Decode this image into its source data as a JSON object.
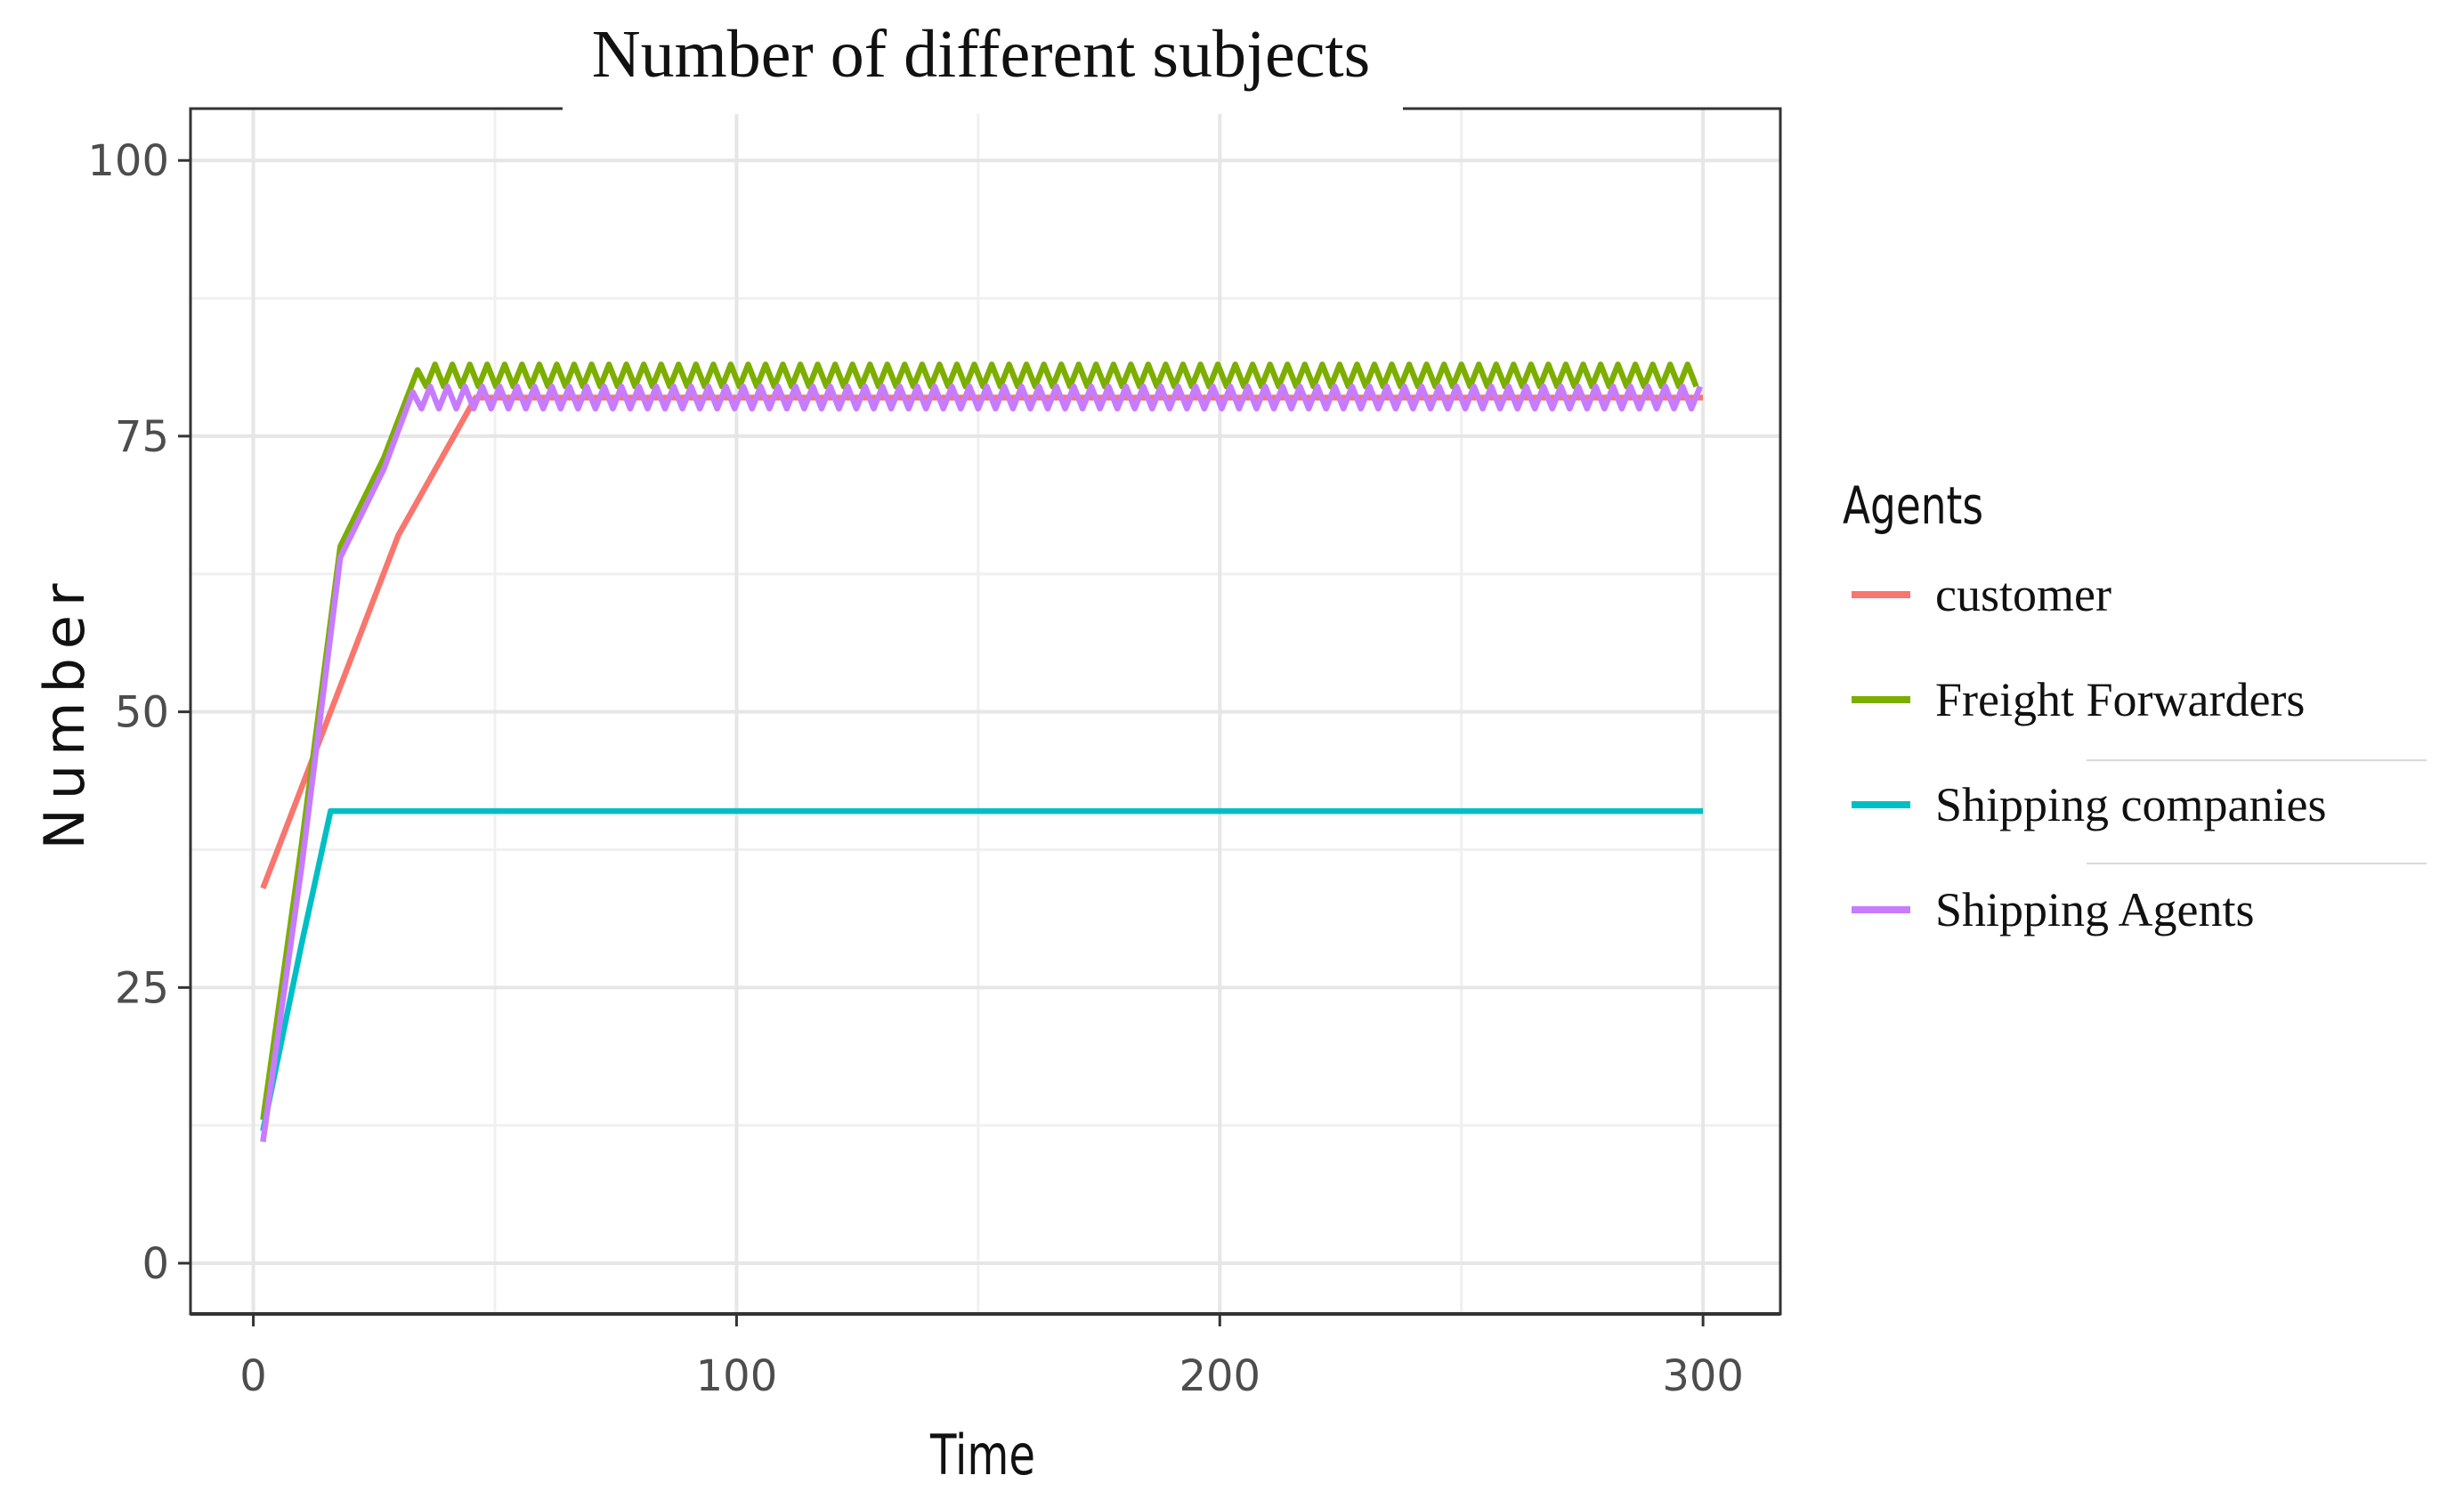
{
  "chart_data": {
    "type": "line",
    "title": "Number of different subjects",
    "xlabel": "Time",
    "ylabel": "Number",
    "xlim": [
      -13,
      316
    ],
    "ylim": [
      -4.6,
      104.7
    ],
    "x_ticks": [
      0,
      100,
      200,
      300
    ],
    "x_minor_ticks": [
      50,
      150,
      250
    ],
    "y_ticks": [
      0,
      25,
      50,
      75,
      100
    ],
    "y_minor_ticks": [
      12.5,
      37.5,
      62.5,
      87.5
    ],
    "grid": true,
    "legend": {
      "title": "Agents",
      "position": "right"
    },
    "series": [
      {
        "name": "customer",
        "color": "#F8766D",
        "points": [
          [
            2,
            34
          ],
          [
            16,
            50
          ],
          [
            30,
            66
          ],
          [
            46,
            78.5
          ],
          [
            300,
            78.5
          ]
        ]
      },
      {
        "name": "Freight Forwarders",
        "color": "#7CAE00",
        "points": [
          [
            2,
            13
          ],
          [
            10,
            38
          ],
          [
            18,
            65
          ],
          [
            27,
            73
          ],
          [
            34,
            81
          ]
        ],
        "oscillation": {
          "from": 34,
          "to": 300,
          "low": 79.5,
          "high": 81.5,
          "period": 3.6
        }
      },
      {
        "name": "Shipping companies",
        "color": "#00BFC4",
        "points": [
          [
            2,
            12
          ],
          [
            10,
            29
          ],
          [
            16,
            41
          ],
          [
            300,
            41
          ]
        ]
      },
      {
        "name": "Shipping Agents",
        "color": "#C77CFF",
        "points": [
          [
            2,
            11
          ],
          [
            10,
            36
          ],
          [
            18,
            64
          ],
          [
            27,
            72
          ],
          [
            33,
            79
          ]
        ],
        "oscillation": {
          "from": 33,
          "to": 300,
          "low": 77.5,
          "high": 79.5,
          "period": 3.6
        }
      }
    ]
  }
}
